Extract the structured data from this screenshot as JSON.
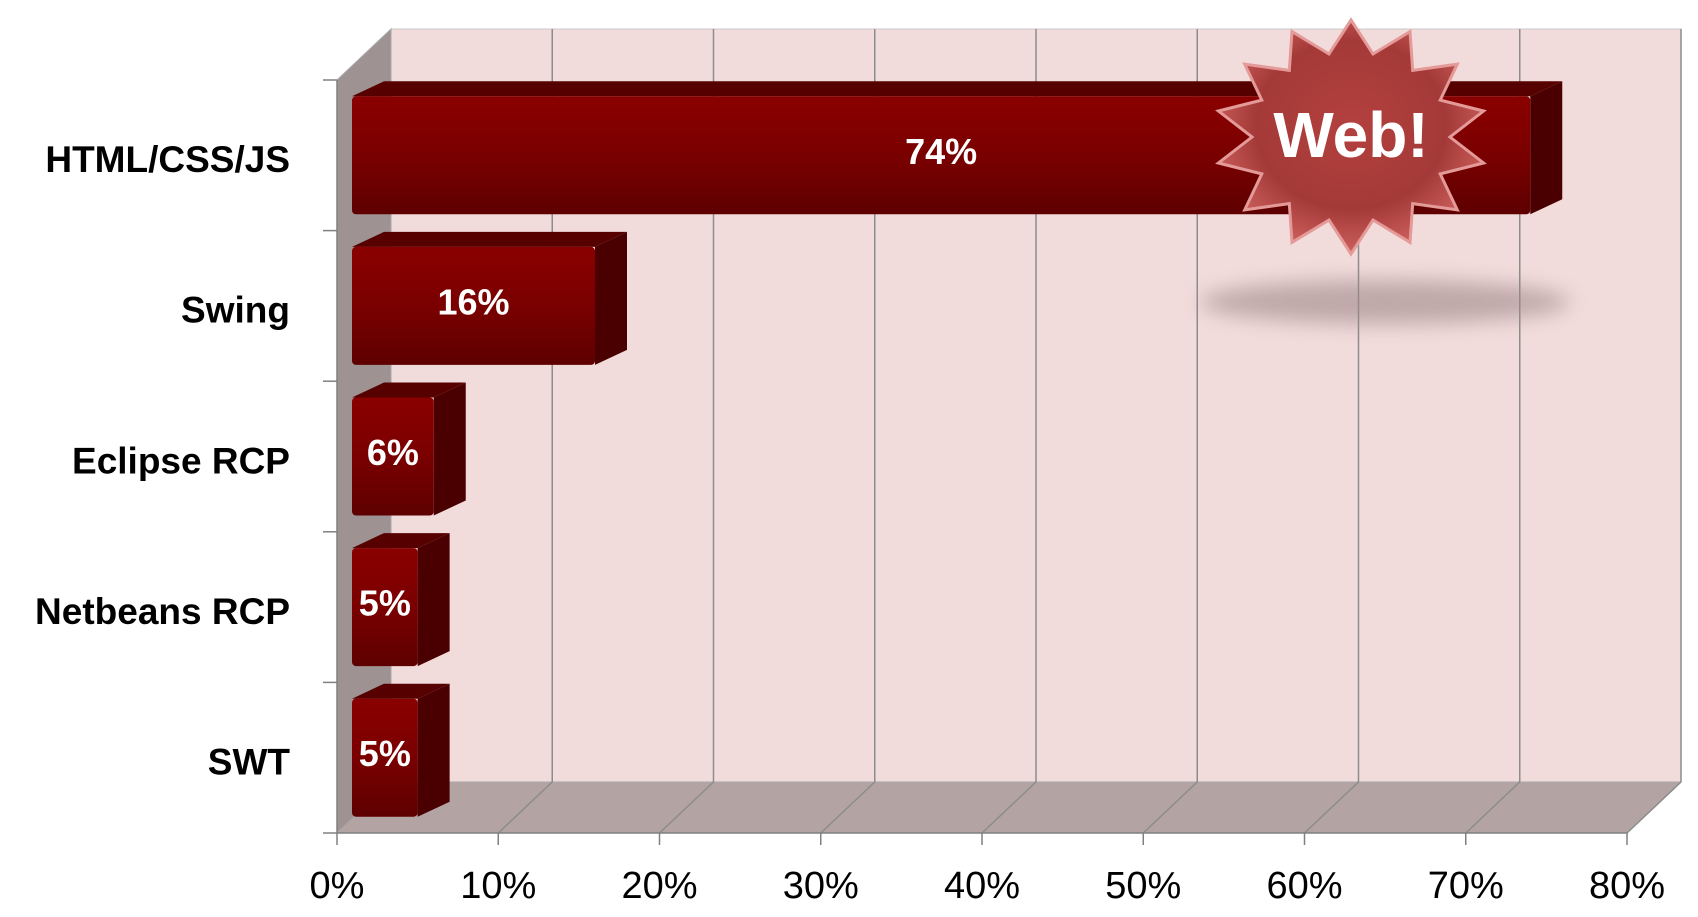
{
  "chart_data": {
    "type": "bar",
    "orientation": "horizontal",
    "style": "3d",
    "categories": [
      "HTML/CSS/JS",
      "Swing",
      "Eclipse RCP",
      "Netbeans RCP",
      "SWT"
    ],
    "values": [
      74,
      16,
      6,
      5,
      5
    ],
    "data_labels": [
      "74%",
      "16%",
      "6%",
      "5%",
      "5%"
    ],
    "x_ticks": [
      "0%",
      "10%",
      "20%",
      "30%",
      "40%",
      "50%",
      "60%",
      "70%",
      "80%"
    ],
    "xlim": [
      0,
      80
    ],
    "grid": true,
    "legend": "none",
    "bar_color": "#7a0000",
    "wall_color": "#f2dcdb",
    "floor_color": "#b4a3a3",
    "annotation": {
      "text": "Web!",
      "shape": "starburst",
      "color": "#c0504d"
    }
  }
}
